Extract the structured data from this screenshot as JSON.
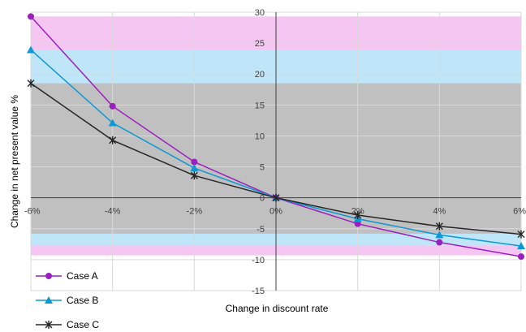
{
  "chart_data": {
    "type": "line",
    "xlabel": "Change in discount rate",
    "ylabel": "Change in net present value %",
    "x": [
      -6,
      -4,
      -2,
      0,
      2,
      4,
      6
    ],
    "x_tick_labels": [
      "-6%",
      "-4%",
      "-2%",
      "0%",
      "2%",
      "4%",
      "6%"
    ],
    "xlim": [
      -6,
      6
    ],
    "ylim": [
      -15,
      30
    ],
    "y_ticks": [
      -15,
      -10,
      -5,
      0,
      5,
      10,
      15,
      20,
      25,
      30
    ],
    "grid": true,
    "legend_position": "bottom-left",
    "bands": [
      {
        "from": -9.3,
        "to": 29.3,
        "color": "#f5c6f2"
      },
      {
        "from": -7.7,
        "to": 23.9,
        "color": "#bfe6f8"
      },
      {
        "from": -5.8,
        "to": 18.5,
        "color": "#c0c0c0"
      }
    ],
    "series": [
      {
        "name": "Case A",
        "color": "#9b1fbf",
        "marker": "circle",
        "values": [
          29.3,
          14.8,
          5.8,
          0,
          -4.2,
          -7.2,
          -9.5
        ]
      },
      {
        "name": "Case B",
        "color": "#0d98d4",
        "marker": "triangle",
        "values": [
          23.9,
          12.1,
          4.8,
          0,
          -3.4,
          -6.0,
          -7.8
        ]
      },
      {
        "name": "Case C",
        "color": "#262626",
        "marker": "star",
        "values": [
          18.5,
          9.3,
          3.6,
          0,
          -2.8,
          -4.6,
          -5.9
        ]
      }
    ]
  }
}
